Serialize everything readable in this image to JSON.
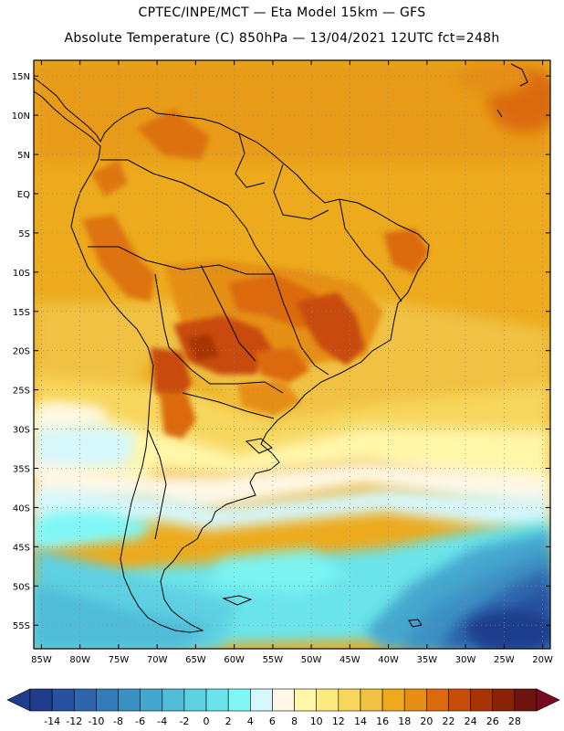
{
  "header": {
    "line1": "CPTEC/INPE/MCT —  Eta Model 15km — GFS",
    "line2": "Absolute Temperature (C) 850hPa — 13/04/2021 12UTC fct=248h"
  },
  "map": {
    "lon_range": [
      -86,
      -19
    ],
    "lat_range": [
      -58,
      17
    ],
    "lat_ticks": [
      15,
      10,
      5,
      0,
      -5,
      -10,
      -15,
      -20,
      -25,
      -30,
      -35,
      -40,
      -45,
      -50,
      -55
    ],
    "lat_labels": [
      "15N",
      "10N",
      "5N",
      "EQ",
      "5S",
      "10S",
      "15S",
      "20S",
      "25S",
      "30S",
      "35S",
      "40S",
      "45S",
      "50S",
      "55S"
    ],
    "lon_ticks": [
      -85,
      -80,
      -75,
      -70,
      -65,
      -60,
      -55,
      -50,
      -45,
      -40,
      -35,
      -30,
      -25,
      -20
    ],
    "lon_labels": [
      "85W",
      "80W",
      "75W",
      "70W",
      "65W",
      "60W",
      "55W",
      "50W",
      "45W",
      "40W",
      "35W",
      "30W",
      "25W",
      "20W"
    ]
  },
  "colorbar": {
    "levels": [
      "-14",
      "-12",
      "-10",
      "-8",
      "-6",
      "-4",
      "-2",
      "0",
      "2",
      "4",
      "6",
      "8",
      "10",
      "12",
      "14",
      "16",
      "18",
      "20",
      "22",
      "24",
      "26",
      "28"
    ],
    "colors": [
      "#1f3d8c",
      "#27519e",
      "#2e66ad",
      "#347bb9",
      "#3c91c4",
      "#45a7cf",
      "#50bcd8",
      "#5dd0e2",
      "#6ae4ea",
      "#7ff7f5",
      "#d6f7fb",
      "#fff8e6",
      "#fff6a8",
      "#fdea80",
      "#f6d65c",
      "#f0c143",
      "#ecaa1c",
      "#e68f14",
      "#dc6a0c",
      "#c84c08",
      "#a83406",
      "#8a2206",
      "#6e1410"
    ],
    "under_color": "#1f3d8c",
    "over_color": "#7a0a22"
  }
}
